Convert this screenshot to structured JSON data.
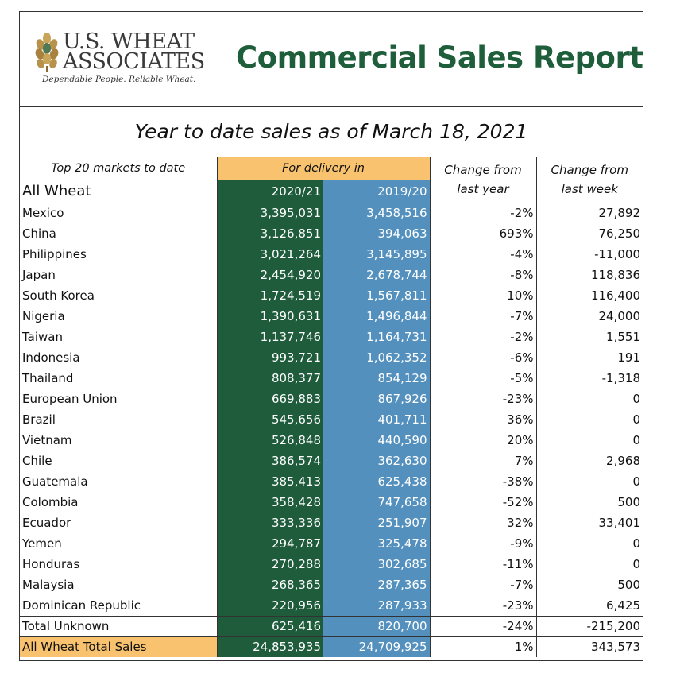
{
  "header": {
    "logo_line1": "U.S. WHEAT",
    "logo_line2": "ASSOCIATES",
    "logo_tagline": "Dependable People. Reliable Wheat.",
    "title": "Commercial Sales Report"
  },
  "subtitle": "Year to date sales as of March 18, 2021",
  "columns": {
    "top20": "Top 20 markets to date",
    "delivery": "For delivery in",
    "change_year": "Change from last year",
    "change_week": "Change from last week",
    "all_wheat": "All Wheat",
    "year_a": "2020/21",
    "year_b": "2019/20"
  },
  "rows": [
    {
      "name": "Mexico",
      "a": "3,395,031",
      "b": "3,458,516",
      "c": "-2%",
      "d": "27,892"
    },
    {
      "name": "China",
      "a": "3,126,851",
      "b": "394,063",
      "c": "693%",
      "d": "76,250"
    },
    {
      "name": "Philippines",
      "a": "3,021,264",
      "b": "3,145,895",
      "c": "-4%",
      "d": "-11,000"
    },
    {
      "name": "Japan",
      "a": "2,454,920",
      "b": "2,678,744",
      "c": "-8%",
      "d": "118,836"
    },
    {
      "name": "South Korea",
      "a": "1,724,519",
      "b": "1,567,811",
      "c": "10%",
      "d": "116,400"
    },
    {
      "name": "Nigeria",
      "a": "1,390,631",
      "b": "1,496,844",
      "c": "-7%",
      "d": "24,000"
    },
    {
      "name": "Taiwan",
      "a": "1,137,746",
      "b": "1,164,731",
      "c": "-2%",
      "d": "1,551"
    },
    {
      "name": "Indonesia",
      "a": "993,721",
      "b": "1,062,352",
      "c": "-6%",
      "d": "191"
    },
    {
      "name": "Thailand",
      "a": "808,377",
      "b": "854,129",
      "c": "-5%",
      "d": "-1,318"
    },
    {
      "name": "European Union",
      "a": "669,883",
      "b": "867,926",
      "c": "-23%",
      "d": "0"
    },
    {
      "name": "Brazil",
      "a": "545,656",
      "b": "401,711",
      "c": "36%",
      "d": "0"
    },
    {
      "name": "Vietnam",
      "a": "526,848",
      "b": "440,590",
      "c": "20%",
      "d": "0"
    },
    {
      "name": "Chile",
      "a": "386,574",
      "b": "362,630",
      "c": "7%",
      "d": "2,968"
    },
    {
      "name": "Guatemala",
      "a": "385,413",
      "b": "625,438",
      "c": "-38%",
      "d": "0"
    },
    {
      "name": "Colombia",
      "a": "358,428",
      "b": "747,658",
      "c": "-52%",
      "d": "500"
    },
    {
      "name": "Ecuador",
      "a": "333,336",
      "b": "251,907",
      "c": "32%",
      "d": "33,401"
    },
    {
      "name": "Yemen",
      "a": "294,787",
      "b": "325,478",
      "c": "-9%",
      "d": "0"
    },
    {
      "name": "Honduras",
      "a": "270,288",
      "b": "302,685",
      "c": "-11%",
      "d": "0"
    },
    {
      "name": "Malaysia",
      "a": "268,365",
      "b": "287,365",
      "c": "-7%",
      "d": "500"
    },
    {
      "name": "Dominican Republic",
      "a": "220,956",
      "b": "287,933",
      "c": "-23%",
      "d": "6,425"
    }
  ],
  "unknown": {
    "name": "Total Unknown",
    "a": "625,416",
    "b": "820,700",
    "c": "-24%",
    "d": "-215,200"
  },
  "total": {
    "name": "All Wheat Total Sales",
    "a": "24,853,935",
    "b": "24,709,925",
    "c": "1%",
    "d": "343,573"
  },
  "colors": {
    "title_green": "#1e5e3a",
    "column_green": "#1f5c3c",
    "column_blue": "#5390bd",
    "highlight_orange": "#f8c26f"
  },
  "icons": [
    "wheat-logo-icon"
  ]
}
